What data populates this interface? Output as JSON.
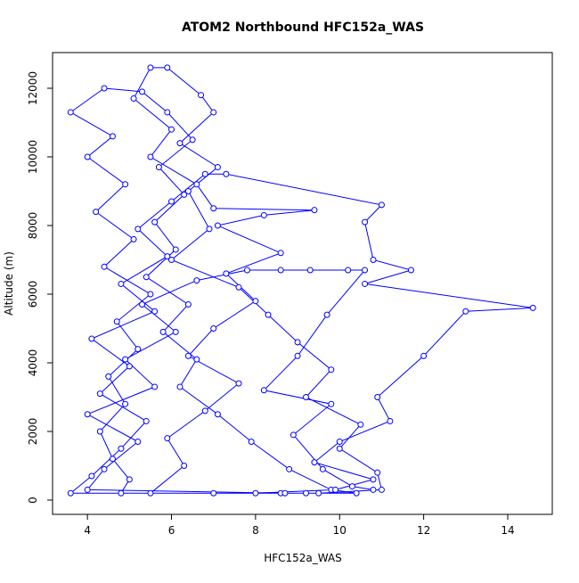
{
  "chart_data": {
    "type": "line",
    "markers": true,
    "color": "#0000ff",
    "title": "ATOM2 Northbound HFC152a_WAS",
    "x_label": "HFC152a_WAS",
    "y_label": "Altitude (m)",
    "xlim": [
      3.17,
      15.06
    ],
    "ylim": [
      -416,
      13039
    ],
    "xticks": [
      4,
      6,
      8,
      10,
      12,
      14
    ],
    "yticks": [
      0,
      2000,
      4000,
      6000,
      8000,
      10000,
      12000
    ],
    "x": [
      4.8,
      5.0,
      4.6,
      4.3,
      4.9,
      4.5,
      5.2,
      4.7,
      5.5,
      4.4,
      5.1,
      4.2,
      4.9,
      4.0,
      4.6,
      3.6,
      4.4,
      5.3,
      5.9,
      6.5,
      5.7,
      6.3,
      5.6,
      6.1,
      5.4,
      6.4,
      5.8,
      6.6,
      6.2,
      7.1,
      7.9,
      8.8,
      9.8,
      10.4,
      9.2,
      8.6,
      3.6,
      4.1,
      4.8,
      5.4,
      4.3,
      5.0,
      4.1,
      5.6,
      4.8,
      5.9,
      5.2,
      6.0,
      6.8,
      7.3,
      11.0,
      10.6,
      10.8,
      11.7,
      10.6,
      14.6,
      13.0,
      12.0,
      10.9,
      11.2,
      10.0,
      9.4,
      10.8,
      9.9,
      8.0,
      7.0,
      5.5,
      6.3,
      5.9,
      6.8,
      7.6,
      6.4,
      7.0,
      8.0,
      7.3,
      8.6,
      7.1,
      8.2,
      9.4,
      7.0,
      6.6,
      5.5,
      6.0,
      5.1,
      5.5,
      5.9,
      6.7,
      7.0,
      6.2,
      7.1,
      6.4,
      6.9,
      6.0,
      7.6,
      8.3,
      9.0,
      9.8,
      9.2,
      10.5,
      10.0,
      10.9,
      11.0,
      9.5,
      8.7,
      4.0,
      4.4,
      5.2,
      4.0,
      5.6,
      4.9,
      6.1,
      5.3,
      6.6,
      7.8,
      8.6,
      9.3,
      10.2,
      10.6,
      9.7,
      9.0,
      8.2,
      9.8,
      8.9,
      9.6,
      10.3,
      10.8
    ],
    "values": [
      200,
      600,
      1200,
      2000,
      2800,
      3600,
      4400,
      5200,
      6000,
      6800,
      7600,
      8400,
      9200,
      10000,
      10600,
      11300,
      12000,
      11900,
      11300,
      10500,
      9700,
      8900,
      8100,
      7300,
      6500,
      5700,
      4900,
      4100,
      3300,
      2500,
      1700,
      900,
      300,
      200,
      200,
      200,
      200,
      700,
      1500,
      2300,
      3100,
      3900,
      4700,
      5500,
      6300,
      7100,
      7900,
      8700,
      9500,
      9500,
      8600,
      8100,
      7000,
      6700,
      6300,
      5600,
      5500,
      4200,
      3000,
      2300,
      1700,
      1100,
      600,
      300,
      200,
      200,
      200,
      1000,
      1800,
      2600,
      3400,
      4200,
      5000,
      5800,
      6600,
      7200,
      8000,
      8300,
      8450,
      8500,
      9200,
      10000,
      10800,
      11700,
      12600,
      12600,
      11800,
      11300,
      10400,
      9700,
      9000,
      7900,
      7000,
      6200,
      5400,
      4600,
      3800,
      3000,
      2200,
      1500,
      800,
      300,
      200,
      200,
      300,
      900,
      1700,
      2500,
      3300,
      4100,
      4900,
      5700,
      6400,
      6700,
      6700,
      6700,
      6700,
      6700,
      5400,
      4200,
      3200,
      2800,
      1900,
      900,
      400,
      300
    ]
  }
}
